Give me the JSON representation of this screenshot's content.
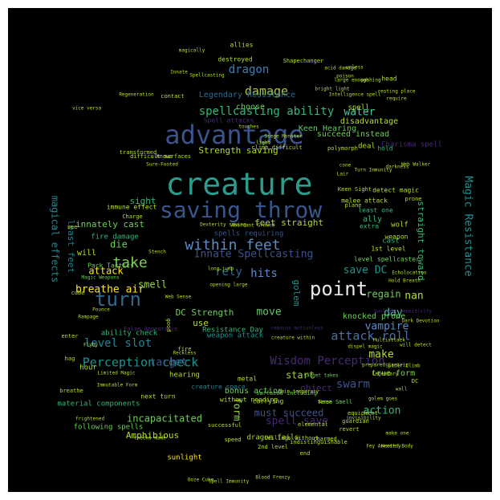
{
  "colors": {
    "background": "#000000",
    "page": "#ffffff",
    "palette": [
      "#2a9d8f",
      "#39568c",
      "#3b528b",
      "#21918c",
      "#5ec962",
      "#440154",
      "#482878",
      "#b5de2b",
      "#fde725",
      "#287d8e",
      "#35b779",
      "#31688e",
      "#6ece58",
      "#481f70",
      "#26828e"
    ]
  },
  "words": [
    {
      "text": "creature",
      "size": 38,
      "color": "#2a9d8f"
    },
    {
      "text": "advantage",
      "size": 32,
      "color": "#3b528b"
    },
    {
      "text": "saving throw",
      "size": 28,
      "color": "#39568c"
    },
    {
      "text": "point",
      "size": 24,
      "color": "#e8e8e8"
    },
    {
      "text": "turn",
      "size": 24,
      "color": "#31688e"
    },
    {
      "text": "within feet",
      "size": 18,
      "color": "#5b8cc8"
    },
    {
      "text": "take",
      "size": 18,
      "color": "#7ad151"
    },
    {
      "text": "spellcasting ability",
      "size": 14,
      "color": "#35b779"
    },
    {
      "text": "damage",
      "size": 15,
      "color": "#a8c84a"
    },
    {
      "text": "dragon",
      "size": 14,
      "color": "#3e7fb5"
    },
    {
      "text": "water",
      "size": 13,
      "color": "#4ec5a0"
    },
    {
      "text": "Perception check",
      "size": 15,
      "color": "#21918c"
    },
    {
      "text": "Wisdom Perception",
      "size": 14,
      "color": "#482878"
    },
    {
      "text": "attack roll",
      "size": 15,
      "color": "#4a6fa0"
    },
    {
      "text": "level slot",
      "size": 14,
      "color": "#26828e"
    },
    {
      "text": "Innate Spellcasting",
      "size": 13,
      "color": "#3b528b"
    },
    {
      "text": "Magic Resistance",
      "size": 13,
      "color": "#21918c"
    },
    {
      "text": "magical effects",
      "size": 12,
      "color": "#26828e"
    },
    {
      "text": "swarm",
      "size": 14,
      "color": "#3b528b"
    },
    {
      "text": "target",
      "size": 13,
      "color": "#39568c"
    },
    {
      "text": "hits",
      "size": 14,
      "color": "#5b8cc8"
    },
    {
      "text": "rely",
      "size": 14,
      "color": "#31688e"
    },
    {
      "text": "save DC",
      "size": 13,
      "color": "#21918c"
    },
    {
      "text": "breathe air",
      "size": 13,
      "color": "#fde725"
    },
    {
      "text": "attack",
      "size": 12,
      "color": "#fde725"
    },
    {
      "text": "smell",
      "size": 12,
      "color": "#9ad44a"
    },
    {
      "text": "move",
      "size": 13,
      "color": "#5ec962"
    },
    {
      "text": "DC Strength",
      "size": 11,
      "color": "#6ece58"
    },
    {
      "text": "day",
      "size": 13,
      "color": "#4ec5a0"
    },
    {
      "text": "regain",
      "size": 12,
      "color": "#6ece58"
    },
    {
      "text": "vampire",
      "size": 13,
      "color": "#5b8cc8"
    },
    {
      "text": "make",
      "size": 13,
      "color": "#b5de2b"
    },
    {
      "text": "action",
      "size": 13,
      "color": "#35b779"
    },
    {
      "text": "spell save",
      "size": 13,
      "color": "#482878"
    },
    {
      "text": "must succeed",
      "size": 12,
      "color": "#3b528b"
    },
    {
      "text": "incapacitated",
      "size": 12,
      "color": "#6ece58"
    },
    {
      "text": "Amphibious",
      "size": 11,
      "color": "#b5de2b"
    },
    {
      "text": "form",
      "size": 12,
      "color": "#9ad44a"
    },
    {
      "text": "start",
      "size": 12,
      "color": "#a8c84a"
    },
    {
      "text": "golem",
      "size": 11,
      "color": "#21918c"
    },
    {
      "text": "straight toward",
      "size": 11,
      "color": "#35b779"
    },
    {
      "text": "feet straight",
      "size": 11,
      "color": "#b5de2b"
    },
    {
      "text": "Strength saving",
      "size": 11,
      "color": "#b5de2b"
    },
    {
      "text": "die",
      "size": 12,
      "color": "#6ece58"
    },
    {
      "text": "innately cast",
      "size": 11,
      "color": "#6ece58"
    },
    {
      "text": "sight",
      "size": 11,
      "color": "#35b779"
    },
    {
      "text": "choose",
      "size": 10,
      "color": "#6ece58"
    },
    {
      "text": "Legendary Resistance",
      "size": 10,
      "color": "#31688e"
    },
    {
      "text": "Keen Hearing",
      "size": 10,
      "color": "#5ec962"
    },
    {
      "text": "disadvantage",
      "size": 10,
      "color": "#b5de2b"
    },
    {
      "text": "succeed instead",
      "size": 10,
      "color": "#6ece58"
    },
    {
      "text": "Charisma spell",
      "size": 9,
      "color": "#482878"
    },
    {
      "text": "nan",
      "size": 13,
      "color": "#b5de2b"
    },
    {
      "text": "least feet",
      "size": 11,
      "color": "#26828e"
    },
    {
      "text": "object",
      "size": 11,
      "color": "#482878"
    },
    {
      "text": "true form",
      "size": 10,
      "color": "#7ad151"
    },
    {
      "text": "knocked prone",
      "size": 10,
      "color": "#6ece58"
    },
    {
      "text": "bonus action",
      "size": 10,
      "color": "#6ece58"
    },
    {
      "text": "Resistance Day",
      "size": 9,
      "color": "#35b779"
    },
    {
      "text": "weapon attack",
      "size": 9,
      "color": "#21918c"
    },
    {
      "text": "spells requiring",
      "size": 9,
      "color": "#39568c"
    },
    {
      "text": "material components",
      "size": 9,
      "color": "#35b779"
    },
    {
      "text": "following spells",
      "size": 9,
      "color": "#6ece58"
    },
    {
      "text": "dragon fails",
      "size": 9,
      "color": "#b5de2b"
    },
    {
      "text": "sunlight",
      "size": 9,
      "color": "#fde725"
    },
    {
      "text": "creature space",
      "size": 8,
      "color": "#26828e"
    },
    {
      "text": "use",
      "size": 11,
      "color": "#b5de2b"
    },
    {
      "text": "will",
      "size": 10,
      "color": "#b5de2b"
    },
    {
      "text": "hour",
      "size": 9,
      "color": "#b5de2b"
    },
    {
      "text": "hearing",
      "size": 9,
      "color": "#b5de2b"
    },
    {
      "text": "fire damage",
      "size": 9,
      "color": "#35b779"
    },
    {
      "text": "ability check",
      "size": 9,
      "color": "#35b779"
    },
    {
      "text": "Pack Tactics",
      "size": 8,
      "color": "#6ece58"
    },
    {
      "text": "immune effect",
      "size": 8,
      "color": "#b5de2b"
    },
    {
      "text": "melee attack",
      "size": 8,
      "color": "#b5de2b"
    },
    {
      "text": "least one",
      "size": 8,
      "color": "#35b779"
    },
    {
      "text": "ally",
      "size": 10,
      "color": "#35b779"
    },
    {
      "text": "extra",
      "size": 8,
      "color": "#35b779"
    },
    {
      "text": "cast",
      "size": 9,
      "color": "#35b779"
    },
    {
      "text": "wolf",
      "size": 9,
      "color": "#b5de2b"
    },
    {
      "text": "weapon",
      "size": 8,
      "color": "#b5de2b"
    },
    {
      "text": "1st level",
      "size": 8,
      "color": "#b5de2b"
    },
    {
      "text": "level spellcaster",
      "size": 8,
      "color": "#6ece58"
    },
    {
      "text": "detect magic",
      "size": 8,
      "color": "#b5de2b"
    },
    {
      "text": "deal",
      "size": 9,
      "color": "#b5de2b"
    },
    {
      "text": "hold",
      "size": 8,
      "color": "#35b779"
    },
    {
      "text": "spell",
      "size": 9,
      "color": "#b5de2b"
    },
    {
      "text": "head",
      "size": 8,
      "color": "#b5de2b"
    },
    {
      "text": "allies",
      "size": 8,
      "color": "#b5de2b"
    },
    {
      "text": "destroyed",
      "size": 8,
      "color": "#b5de2b"
    },
    {
      "text": "Spell attacks",
      "size": 8,
      "color": "#482878"
    },
    {
      "text": "metal",
      "size": 8,
      "color": "#b5de2b"
    },
    {
      "text": "carrying",
      "size": 8,
      "color": "#b5de2b"
    },
    {
      "text": "without needing",
      "size": 8,
      "color": "#b5de2b"
    },
    {
      "text": "next turn",
      "size": 8,
      "color": "#b5de2b"
    },
    {
      "text": "successful",
      "size": 7,
      "color": "#b5de2b"
    },
    {
      "text": "speed",
      "size": 7,
      "color": "#b5de2b"
    },
    {
      "text": "end",
      "size": 7,
      "color": "#b5de2b"
    },
    {
      "text": "elemental",
      "size": 7,
      "color": "#b5de2b"
    },
    {
      "text": "revert",
      "size": 7,
      "color": "#b5de2b"
    },
    {
      "text": "guardian",
      "size": 7,
      "color": "#b5de2b"
    },
    {
      "text": "equipment",
      "size": 7,
      "color": "#b5de2b"
    },
    {
      "text": "indistinguishable",
      "size": 7,
      "color": "#b5de2b"
    },
    {
      "text": "charmed",
      "size": 7,
      "color": "#b5de2b"
    },
    {
      "text": "Keen Smell",
      "size": 7,
      "color": "#6ece58"
    },
    {
      "text": "2nd level",
      "size": 7,
      "color": "#b5de2b"
    },
    {
      "text": "ceilings without",
      "size": 7,
      "color": "#b5de2b"
    },
    {
      "text": "surfaces including",
      "size": 7,
      "color": "#6ece58"
    },
    {
      "text": "Shapechanger",
      "size": 7,
      "color": "#b5de2b"
    },
    {
      "text": "polymorph",
      "size": 7,
      "color": "#b5de2b"
    },
    {
      "text": "contact",
      "size": 7,
      "color": "#b5de2b"
    },
    {
      "text": "knows",
      "size": 7,
      "color": "#b5de2b"
    },
    {
      "text": "transformed",
      "size": 7,
      "color": "#b5de2b"
    },
    {
      "text": "difficult surfaces",
      "size": 7,
      "color": "#b5de2b"
    },
    {
      "text": "climb difficult",
      "size": 7,
      "color": "#b5de2b"
    },
    {
      "text": "plane",
      "size": 7,
      "color": "#b5de2b"
    },
    {
      "text": "Keen Sight",
      "size": 7,
      "color": "#b5de2b"
    },
    {
      "text": "prone",
      "size": 7,
      "color": "#b5de2b"
    },
    {
      "text": "magically",
      "size": 6,
      "color": "#b5de2b"
    },
    {
      "text": "Charge",
      "size": 7,
      "color": "#b5de2b"
    },
    {
      "text": "fire",
      "size": 7,
      "color": "#b5de2b"
    },
    {
      "text": "enter",
      "size": 7,
      "color": "#b5de2b"
    },
    {
      "text": "hag",
      "size": 7,
      "color": "#b5de2b"
    },
    {
      "text": "breathe",
      "size": 7,
      "color": "#b5de2b"
    },
    {
      "text": "see",
      "size": 7,
      "color": "#b5de2b"
    },
    {
      "text": "cube",
      "size": 7,
      "color": "#b5de2b"
    },
    {
      "text": "good",
      "size": 7,
      "color": "#b5de2b"
    },
    {
      "text": "False Appearance",
      "size": 7,
      "color": "#482878"
    },
    {
      "text": "Magic Weapons",
      "size": 6,
      "color": "#6ece58"
    },
    {
      "text": "opening large",
      "size": 6,
      "color": "#b5de2b"
    },
    {
      "text": "remains motionless",
      "size": 6,
      "color": "#482878"
    },
    {
      "text": "creature within",
      "size": 6,
      "color": "#b5de2b"
    },
    {
      "text": "checks made",
      "size": 6,
      "color": "#b5de2b"
    },
    {
      "text": "target takes",
      "size": 6,
      "color": "#6ece58"
    },
    {
      "text": "gain temporary",
      "size": 6,
      "color": "#b5de2b"
    },
    {
      "text": "dispel magic",
      "size": 6,
      "color": "#b5de2b"
    },
    {
      "text": "prepared Cantrip",
      "size": 6,
      "color": "#b5de2b"
    },
    {
      "text": "make one",
      "size": 6,
      "color": "#b5de2b"
    },
    {
      "text": "unless",
      "size": 6,
      "color": "#b5de2b"
    },
    {
      "text": "large enough",
      "size": 6,
      "color": "#b5de2b"
    },
    {
      "text": "poison",
      "size": 6,
      "color": "#b5de2b"
    },
    {
      "text": "frightened",
      "size": 6,
      "color": "#b5de2b"
    },
    {
      "text": "Sense",
      "size": 6,
      "color": "#b5de2b"
    },
    {
      "text": "invisibility",
      "size": 6,
      "color": "#b5de2b"
    },
    {
      "text": "Legendary",
      "size": 6,
      "color": "#b5de2b"
    },
    {
      "text": "golem goes",
      "size": 6,
      "color": "#b5de2b"
    },
    {
      "text": "Spider Climb",
      "size": 6,
      "color": "#b5de2b"
    },
    {
      "text": "Sunlight Sensitivity",
      "size": 6,
      "color": "#482878"
    },
    {
      "text": "Multiattack",
      "size": 6,
      "color": "#b5de2b"
    },
    {
      "text": "Dark Devotion",
      "size": 6,
      "color": "#b5de2b"
    },
    {
      "text": "will detect",
      "size": 6,
      "color": "#b5de2b"
    },
    {
      "text": "DC",
      "size": 7,
      "color": "#b5de2b"
    },
    {
      "text": "wall",
      "size": 6,
      "color": "#b5de2b"
    },
    {
      "text": "cone",
      "size": 6,
      "color": "#b5de2b"
    },
    {
      "text": "Lair",
      "size": 6,
      "color": "#b5de2b"
    },
    {
      "text": "darkness",
      "size": 6,
      "color": "#b5de2b"
    },
    {
      "text": "vice versa",
      "size": 6,
      "color": "#b5de2b"
    },
    {
      "text": "acid damage",
      "size": 6,
      "color": "#b5de2b"
    },
    {
      "text": "bright light",
      "size": 6,
      "color": "#b5de2b"
    },
    {
      "text": "resting place",
      "size": 6,
      "color": "#b5de2b"
    },
    {
      "text": "require",
      "size": 6,
      "color": "#b5de2b"
    },
    {
      "text": "pushing",
      "size": 6,
      "color": "#b5de2b"
    },
    {
      "text": "Sure-Footed",
      "size": 6,
      "color": "#b5de2b"
    },
    {
      "text": "light",
      "size": 6,
      "color": "#b5de2b"
    },
    {
      "text": "Aberrant Ground",
      "size": 6,
      "color": "#b5de2b"
    },
    {
      "text": "Dexterity saving",
      "size": 6,
      "color": "#b5de2b"
    },
    {
      "text": "long jump",
      "size": 6,
      "color": "#b5de2b"
    },
    {
      "text": "Intelligence spell",
      "size": 6,
      "color": "#b5de2b"
    },
    {
      "text": "Innate",
      "size": 6,
      "color": "#b5de2b"
    },
    {
      "text": "Regeneration",
      "size": 6,
      "color": "#b5de2b"
    },
    {
      "text": "Spellcasting",
      "size": 6,
      "color": "#b5de2b"
    },
    {
      "text": "touches",
      "size": 6,
      "color": "#b5de2b"
    },
    {
      "text": "Siege Monster",
      "size": 6,
      "color": "#b5de2b"
    },
    {
      "text": "Stench",
      "size": 6,
      "color": "#b5de2b"
    },
    {
      "text": "Web Walker",
      "size": 6,
      "color": "#b5de2b"
    },
    {
      "text": "Web Sense",
      "size": 6,
      "color": "#b5de2b"
    },
    {
      "text": "Turn Immunity",
      "size": 6,
      "color": "#b5de2b"
    },
    {
      "text": "Limited Magic",
      "size": 6,
      "color": "#b5de2b"
    },
    {
      "text": "Immutable Form",
      "size": 6,
      "color": "#b5de2b"
    },
    {
      "text": "Flyby",
      "size": 6,
      "color": "#b5de2b"
    },
    {
      "text": "Echolocation",
      "size": 6,
      "color": "#b5de2b"
    },
    {
      "text": "Hold Breath",
      "size": 6,
      "color": "#b5de2b"
    },
    {
      "text": "Reckless",
      "size": 6,
      "color": "#b5de2b"
    },
    {
      "text": "Rampage",
      "size": 6,
      "color": "#b5de2b"
    },
    {
      "text": "Pounce",
      "size": 6,
      "color": "#b5de2b"
    },
    {
      "text": "Blood Frenzy",
      "size": 6,
      "color": "#b5de2b"
    },
    {
      "text": "Heated Body",
      "size": 6,
      "color": "#b5de2b"
    },
    {
      "text": "Fey Ancestry",
      "size": 6,
      "color": "#b5de2b"
    },
    {
      "text": "Spell Immunity",
      "size": 6,
      "color": "#b5de2b"
    },
    {
      "text": "Ooze Cube",
      "size": 6,
      "color": "#b5de2b"
    },
    {
      "text": "Transparent",
      "size": 6,
      "color": "#b5de2b"
    }
  ]
}
